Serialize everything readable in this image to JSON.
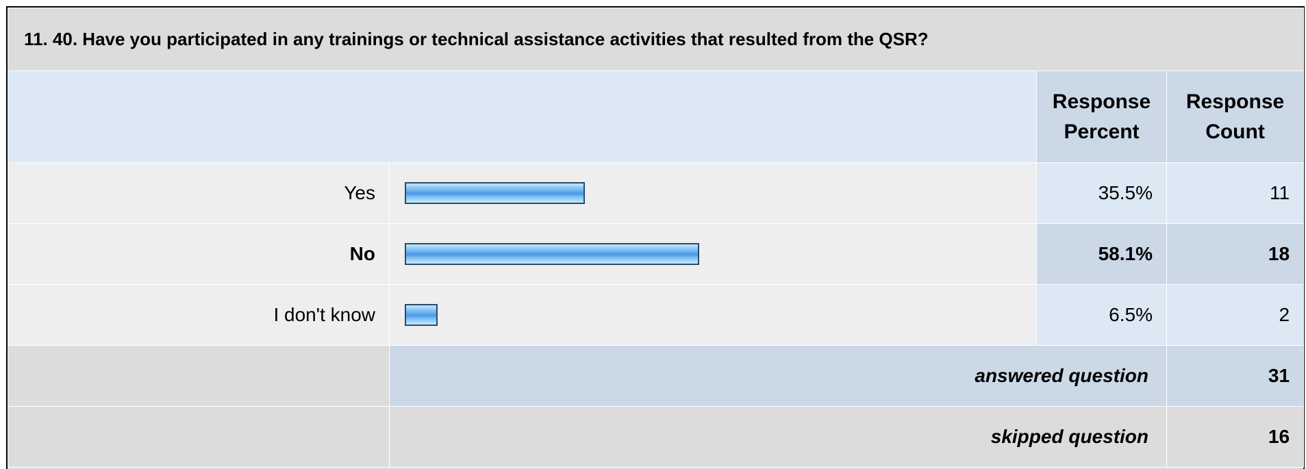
{
  "question": {
    "title": "11. 40. Have you participated in any trainings or technical assistance activities that resulted from the QSR?"
  },
  "headers": {
    "response_percent": "Response Percent",
    "response_count": "Response Count"
  },
  "chart_data": {
    "type": "bar",
    "orientation": "horizontal",
    "categories": [
      "Yes",
      "No",
      "I don't know"
    ],
    "values": [
      35.5,
      58.1,
      6.5
    ],
    "percent_labels": [
      "35.5%",
      "58.1%",
      "6.5%"
    ],
    "counts": [
      11,
      18,
      2
    ],
    "highlighted_category": "No",
    "xlim": [
      0,
      100
    ]
  },
  "summary": {
    "answered_label": "answered question",
    "answered_value": "31",
    "skipped_label": "skipped question",
    "skipped_value": "16"
  },
  "colors": {
    "bar_fill": "#5aa6ec",
    "bar_border": "#2a4a6a",
    "header_bg": "#cbd8e6",
    "light_blue_bg": "#dde8f5",
    "gray_bg": "#dcdcdc"
  }
}
